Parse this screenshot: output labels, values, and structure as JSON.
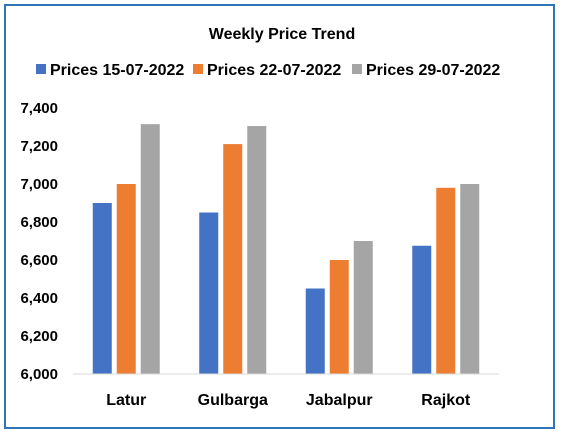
{
  "chart_data": {
    "type": "bar",
    "title": "Weekly Price Trend",
    "categories": [
      "Latur",
      "Gulbarga",
      "Jabalpur",
      "Rajkot"
    ],
    "series": [
      {
        "name": "Prices 15-07-2022",
        "color": "#4472c4",
        "values": [
          6900,
          6850,
          6450,
          6675
        ]
      },
      {
        "name": "Prices 22-07-2022",
        "color": "#ed7d31",
        "values": [
          7000,
          7210,
          6600,
          6980
        ]
      },
      {
        "name": "Prices 29-07-2022",
        "color": "#a5a5a5",
        "values": [
          7315,
          7305,
          6700,
          7000
        ]
      }
    ],
    "ylim": [
      6000,
      7400
    ],
    "yticks": [
      6000,
      6200,
      6400,
      6600,
      6800,
      7000,
      7200,
      7400
    ],
    "ytick_labels": [
      "6,000",
      "6,200",
      "6,400",
      "6,600",
      "6,800",
      "7,000",
      "7,200",
      "7,400"
    ],
    "xlabel": "",
    "ylabel": "",
    "grid": false,
    "legend_position": "top"
  }
}
